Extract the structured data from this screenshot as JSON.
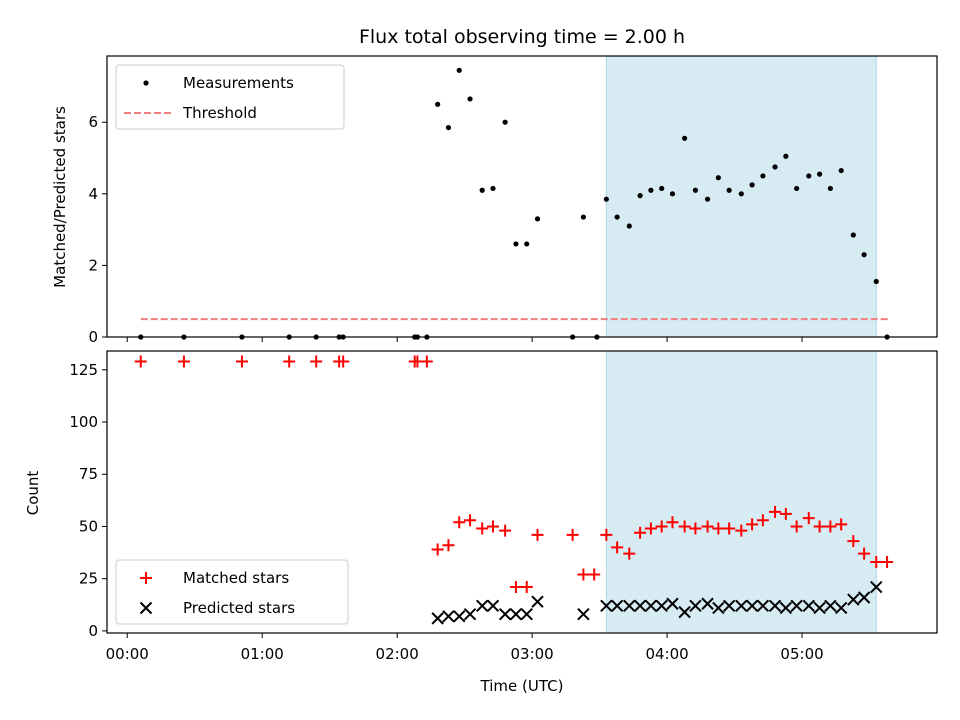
{
  "chart_data": [
    {
      "type": "scatter",
      "title": "Flux total observing time = 2.00 h",
      "xlabel": "",
      "ylabel": "Matched/Predicted stars",
      "xlim": [
        -0.15,
        6.0
      ],
      "ylim": [
        0,
        7.85
      ],
      "yticks": [
        0,
        2,
        4,
        6
      ],
      "shaded_region": [
        3.55,
        5.55
      ],
      "legend": [
        "Measurements",
        "Threshold"
      ],
      "legend_position": "upper-left",
      "threshold": {
        "name": "Threshold",
        "value": 0.5,
        "x_range": [
          0.1,
          5.65
        ],
        "color": "#f08080"
      },
      "series": [
        {
          "name": "Measurements",
          "marker": "dot",
          "color": "#000000",
          "x": [
            0.1,
            0.42,
            0.85,
            1.2,
            1.4,
            1.57,
            1.6,
            2.13,
            2.15,
            2.22,
            2.3,
            2.38,
            2.46,
            2.54,
            2.63,
            2.71,
            2.8,
            2.88,
            2.96,
            3.04,
            3.3,
            3.38,
            3.48,
            3.55,
            3.63,
            3.72,
            3.8,
            3.88,
            3.96,
            4.04,
            4.13,
            4.21,
            4.3,
            4.38,
            4.46,
            4.55,
            4.63,
            4.71,
            4.8,
            4.88,
            4.96,
            5.05,
            5.13,
            5.21,
            5.29,
            5.38,
            5.46,
            5.55,
            5.63
          ],
          "y": [
            0,
            0,
            0,
            0,
            0,
            0,
            0,
            0,
            0,
            0,
            6.5,
            5.85,
            7.45,
            6.65,
            4.1,
            4.15,
            6.0,
            2.6,
            2.6,
            3.3,
            0,
            3.35,
            0,
            3.85,
            3.35,
            3.1,
            3.95,
            4.1,
            4.15,
            4.0,
            5.55,
            4.1,
            3.85,
            4.45,
            4.1,
            4.0,
            4.25,
            4.5,
            4.75,
            5.05,
            4.15,
            4.5,
            4.55,
            4.15,
            4.65,
            2.85,
            2.3,
            1.55,
            0
          ]
        }
      ]
    },
    {
      "type": "scatter",
      "title": "",
      "xlabel": "Time (UTC)",
      "ylabel": "Count",
      "xlim": [
        -0.15,
        6.0
      ],
      "ylim": [
        -1,
        134
      ],
      "yticks": [
        0,
        25,
        50,
        75,
        100,
        125
      ],
      "xticks": [
        0,
        1,
        2,
        3,
        4,
        5
      ],
      "xtick_labels": [
        "00:00",
        "01:00",
        "02:00",
        "03:00",
        "04:00",
        "05:00"
      ],
      "shaded_region": [
        3.55,
        5.55
      ],
      "legend": [
        "Matched stars",
        "Predicted stars"
      ],
      "legend_position": "lower-left",
      "series": [
        {
          "name": "Matched stars",
          "marker": "plus",
          "color": "#ff0000",
          "x": [
            0.1,
            0.42,
            0.85,
            1.2,
            1.4,
            1.57,
            1.6,
            2.13,
            2.15,
            2.22,
            2.3,
            2.38,
            2.46,
            2.54,
            2.63,
            2.71,
            2.8,
            2.88,
            2.96,
            3.04,
            3.3,
            3.38,
            3.46,
            3.55,
            3.63,
            3.72,
            3.8,
            3.88,
            3.96,
            4.04,
            4.13,
            4.21,
            4.3,
            4.38,
            4.46,
            4.55,
            4.63,
            4.71,
            4.8,
            4.88,
            4.96,
            5.05,
            5.13,
            5.21,
            5.29,
            5.38,
            5.46,
            5.55,
            5.63
          ],
          "y": [
            129,
            129,
            129,
            129,
            129,
            129,
            129,
            129,
            129,
            129,
            39,
            41,
            52,
            53,
            49,
            50,
            48,
            21,
            21,
            46,
            46,
            27,
            27,
            46,
            40,
            37,
            47,
            49,
            50,
            52,
            50,
            49,
            50,
            49,
            49,
            48,
            51,
            53,
            57,
            56,
            50,
            54,
            50,
            50,
            51,
            43,
            37,
            33,
            33
          ]
        },
        {
          "name": "Predicted stars",
          "marker": "x",
          "color": "#000000",
          "x": [
            2.3,
            2.38,
            2.46,
            2.54,
            2.63,
            2.71,
            2.8,
            2.88,
            2.96,
            3.04,
            3.38,
            3.55,
            3.63,
            3.72,
            3.8,
            3.88,
            3.96,
            4.04,
            4.13,
            4.21,
            4.3,
            4.38,
            4.46,
            4.55,
            4.63,
            4.71,
            4.8,
            4.88,
            4.96,
            5.05,
            5.13,
            5.21,
            5.29,
            5.38,
            5.46,
            5.55
          ],
          "y": [
            6,
            7,
            7,
            8,
            12,
            12,
            8,
            8,
            8,
            14,
            8,
            12,
            12,
            12,
            12,
            12,
            12,
            13,
            9,
            12,
            13,
            11,
            12,
            12,
            12,
            12,
            12,
            11,
            12,
            12,
            11,
            12,
            11,
            15,
            16,
            21
          ]
        }
      ]
    }
  ]
}
